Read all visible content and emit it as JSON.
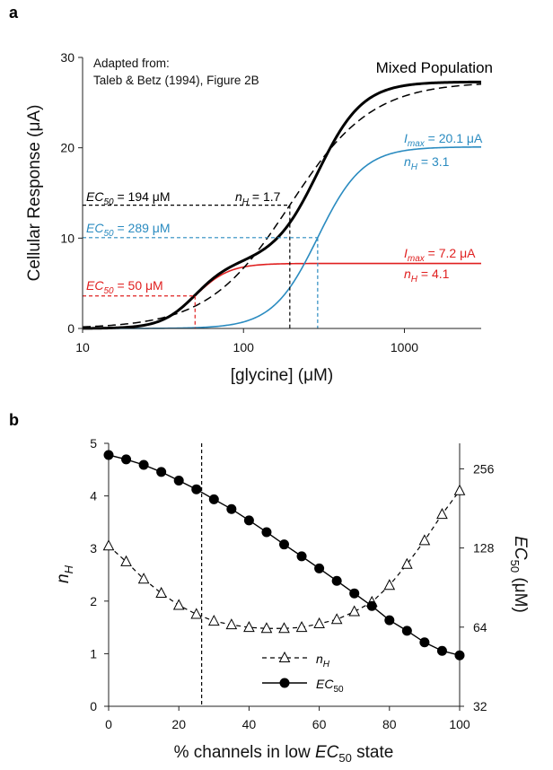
{
  "colors": {
    "black": "#000000",
    "blue": "#2a8bc0",
    "red": "#e02020"
  },
  "chart_data": [
    {
      "panel": "a",
      "type": "line",
      "xscale": "log",
      "xlim": [
        10,
        3000
      ],
      "ylim": [
        0,
        30
      ],
      "xticks": [
        "10",
        "100",
        "1000"
      ],
      "xtick_values": [
        10,
        100,
        1000
      ],
      "yticks": [
        "0",
        "10",
        "20",
        "30"
      ],
      "ytick_values": [
        0,
        10,
        20,
        30
      ],
      "xlabel": "[glycine] (μM)",
      "ylabel": "Cellular Response (μA)",
      "source_note_1": "Adapted from:",
      "source_note_2": "Taleb & Betz (1994), Figure 2B",
      "mixed_label": "Mixed Population",
      "series": [
        {
          "name": "Mixed Population",
          "style": "solid-thick",
          "color": "black",
          "kind": "sum"
        },
        {
          "name": "",
          "style": "dashed",
          "color": "black",
          "imax": 27.3,
          "ec50": 194,
          "nh": 1.7
        },
        {
          "name": "",
          "style": "solid",
          "color": "blue",
          "imax": 20.1,
          "ec50": 289,
          "nh": 3.1
        },
        {
          "name": "",
          "style": "solid",
          "color": "red",
          "imax": 7.2,
          "ec50": 50,
          "nh": 4.1
        }
      ],
      "annotations": {
        "black_ec50": {
          "prefix": "EC",
          "sub": "50",
          "suffix": " = 194 μM",
          "value": 194,
          "y": 13.65
        },
        "black_nh": {
          "prefix": "n",
          "sub": "H",
          "suffix": " = 1.7"
        },
        "blue_ec50": {
          "prefix": "EC",
          "sub": "50",
          "suffix": " = 289 μM",
          "value": 289,
          "y": 10.05
        },
        "blue_imax": {
          "prefix": "I",
          "sub": "max",
          "suffix": " = 20.1 μA"
        },
        "blue_nh": {
          "prefix": "n",
          "sub": "H",
          "suffix": " = 3.1"
        },
        "red_ec50": {
          "prefix": "EC",
          "sub": "50",
          "suffix": " = 50 μM",
          "value": 50,
          "y": 3.6
        },
        "red_imax": {
          "prefix": "I",
          "sub": "max",
          "suffix": " = 7.2 μA"
        },
        "red_nh": {
          "prefix": "n",
          "sub": "H",
          "suffix": " = 4.1"
        }
      }
    },
    {
      "panel": "b",
      "type": "line",
      "xlim": [
        0,
        100
      ],
      "ylim_left": [
        0,
        5
      ],
      "ylim_right_log2": [
        32,
        320
      ],
      "xticks": [
        "0",
        "20",
        "40",
        "60",
        "80",
        "100"
      ],
      "xtick_values": [
        0,
        20,
        40,
        60,
        80,
        100
      ],
      "yticks_left": [
        "0",
        "1",
        "2",
        "3",
        "4",
        "5"
      ],
      "ytick_values_left": [
        0,
        1,
        2,
        3,
        4,
        5
      ],
      "yticks_right": [
        "32",
        "64",
        "128",
        "256"
      ],
      "ytick_values_right": [
        32,
        64,
        128,
        256
      ],
      "xlabel_prefix": "% channels in low ",
      "xlabel_italic": "EC",
      "xlabel_sub": "50",
      "xlabel_suffix": " state",
      "ylabel_left_main": "n",
      "ylabel_left_sub": "H",
      "ylabel_right_main": "EC",
      "ylabel_right_sub": "50",
      "ylabel_right_suffix": " (μM)",
      "vline_x": 26.5,
      "x": [
        0,
        5,
        10,
        15,
        20,
        25,
        30,
        35,
        40,
        45,
        50,
        55,
        60,
        65,
        70,
        75,
        80,
        85,
        90,
        95,
        100
      ],
      "series": [
        {
          "name": "n_H",
          "legend_main": "n",
          "legend_sub": "H",
          "style": "dashed",
          "marker": "open-triangle",
          "values": [
            3.05,
            2.75,
            2.42,
            2.15,
            1.92,
            1.75,
            1.62,
            1.55,
            1.5,
            1.48,
            1.48,
            1.5,
            1.57,
            1.65,
            1.8,
            1.98,
            2.3,
            2.7,
            3.15,
            3.65,
            4.1
          ]
        },
        {
          "name": "EC_50",
          "legend_main": "EC",
          "legend_sub": "50",
          "style": "solid",
          "marker": "filled-circle",
          "axis": "right",
          "values": [
            289,
            278,
            265,
            249,
            231,
            214,
            196,
            180,
            163,
            147,
            132,
            119,
            107,
            96,
            86,
            77,
            68,
            62,
            56,
            52,
            50
          ]
        }
      ]
    }
  ]
}
